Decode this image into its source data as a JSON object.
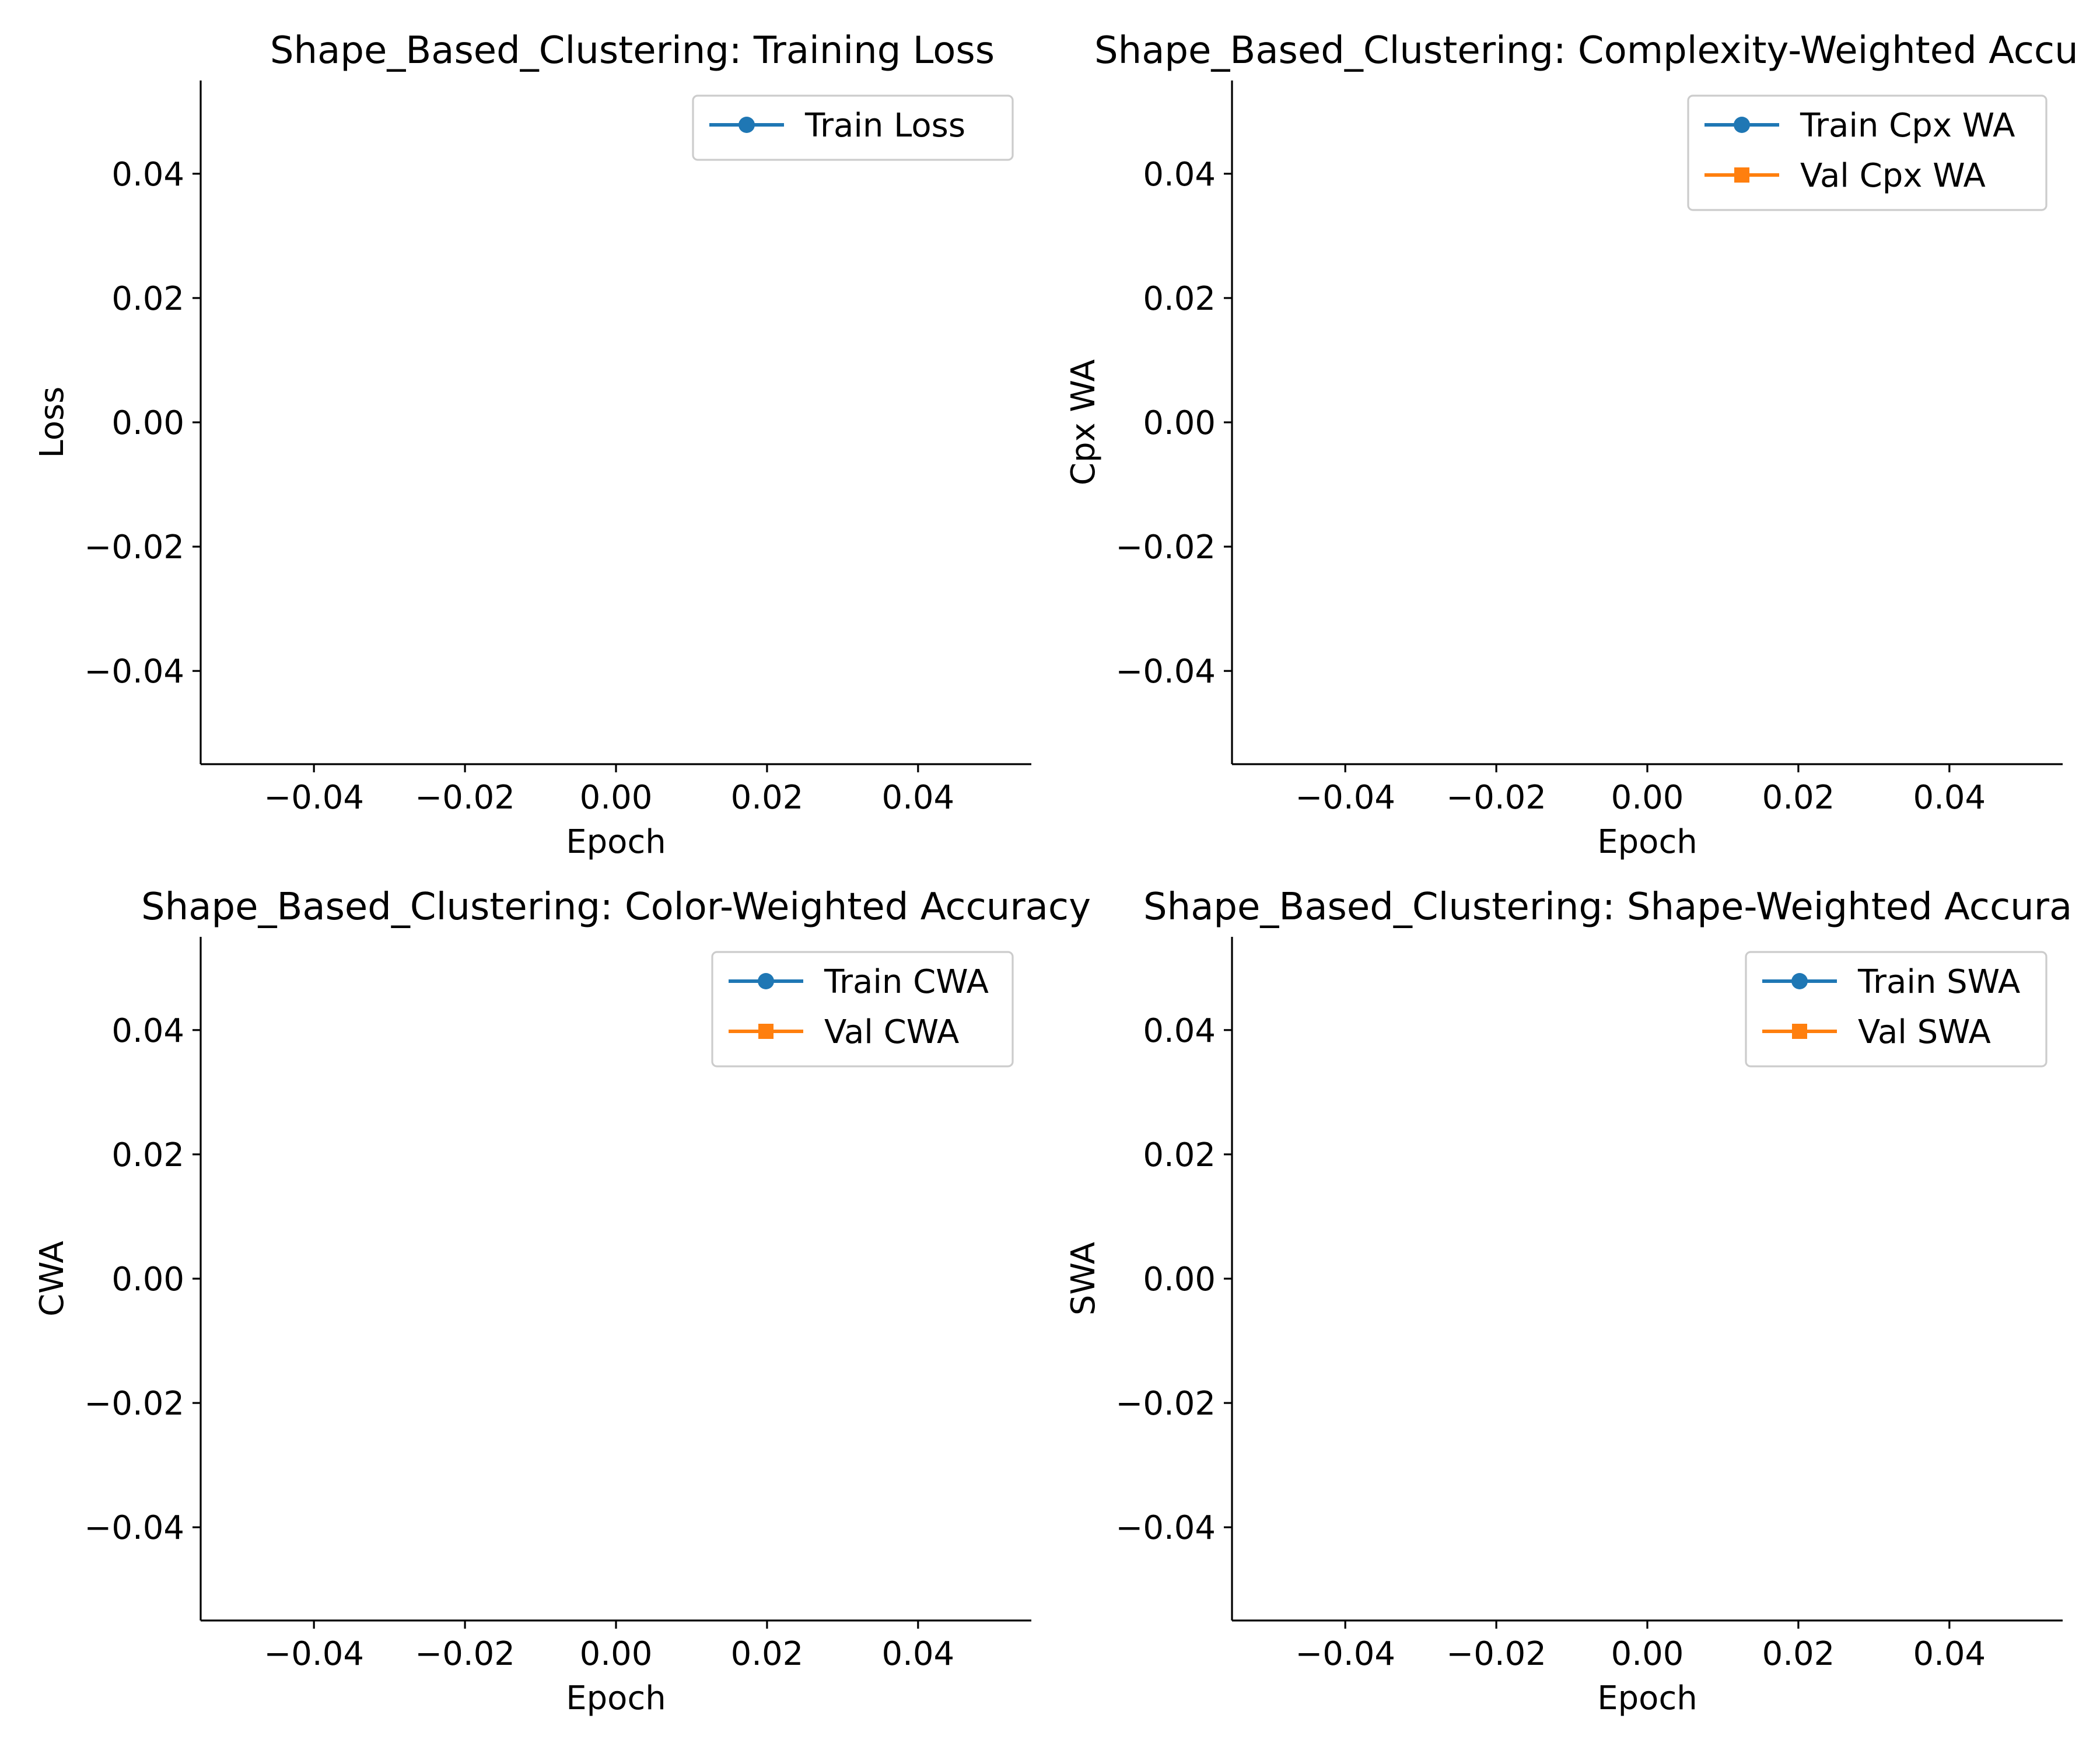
{
  "colors": {
    "train": "#1f77b4",
    "val": "#ff7f0e"
  },
  "chart_data": [
    {
      "type": "line",
      "title": "Shape_Based_Clustering: Training Loss",
      "xlabel": "Epoch",
      "ylabel": "Loss",
      "xlim": [
        -0.055,
        0.055
      ],
      "ylim": [
        -0.055,
        0.055
      ],
      "xticks": [
        "−0.04",
        "−0.02",
        "0.00",
        "0.02",
        "0.04"
      ],
      "yticks": [
        "0.04",
        "0.02",
        "0.00",
        "−0.02",
        "−0.04"
      ],
      "grid": false,
      "legend_position": "upper right",
      "series": [
        {
          "name": "Train Loss",
          "marker": "circle",
          "color": "#1f77b4",
          "x": [],
          "y": []
        }
      ]
    },
    {
      "type": "line",
      "title": "Shape_Based_Clustering: Complexity-Weighted Accu",
      "xlabel": "Epoch",
      "ylabel": "Cpx WA",
      "xlim": [
        -0.055,
        0.055
      ],
      "ylim": [
        -0.055,
        0.055
      ],
      "xticks": [
        "−0.04",
        "−0.02",
        "0.00",
        "0.02",
        "0.04"
      ],
      "yticks": [
        "0.04",
        "0.02",
        "0.00",
        "−0.02",
        "−0.04"
      ],
      "grid": false,
      "legend_position": "upper right",
      "series": [
        {
          "name": "Train Cpx WA",
          "marker": "circle",
          "color": "#1f77b4",
          "x": [],
          "y": []
        },
        {
          "name": "Val Cpx WA",
          "marker": "square",
          "color": "#ff7f0e",
          "x": [],
          "y": []
        }
      ]
    },
    {
      "type": "line",
      "title": "Shape_Based_Clustering: Color-Weighted Accuracy",
      "xlabel": "Epoch",
      "ylabel": "CWA",
      "xlim": [
        -0.055,
        0.055
      ],
      "ylim": [
        -0.055,
        0.055
      ],
      "xticks": [
        "−0.04",
        "−0.02",
        "0.00",
        "0.02",
        "0.04"
      ],
      "yticks": [
        "0.04",
        "0.02",
        "0.00",
        "−0.02",
        "−0.04"
      ],
      "grid": false,
      "legend_position": "upper right",
      "series": [
        {
          "name": "Train CWA",
          "marker": "circle",
          "color": "#1f77b4",
          "x": [],
          "y": []
        },
        {
          "name": "Val CWA",
          "marker": "square",
          "color": "#ff7f0e",
          "x": [],
          "y": []
        }
      ]
    },
    {
      "type": "line",
      "title": "Shape_Based_Clustering: Shape-Weighted Accura",
      "xlabel": "Epoch",
      "ylabel": "SWA",
      "xlim": [
        -0.055,
        0.055
      ],
      "ylim": [
        -0.055,
        0.055
      ],
      "xticks": [
        "−0.04",
        "−0.02",
        "0.00",
        "0.02",
        "0.04"
      ],
      "yticks": [
        "0.04",
        "0.02",
        "0.00",
        "−0.02",
        "−0.04"
      ],
      "grid": false,
      "legend_position": "upper right",
      "series": [
        {
          "name": "Train SWA",
          "marker": "circle",
          "color": "#1f77b4",
          "x": [],
          "y": []
        },
        {
          "name": "Val SWA",
          "marker": "square",
          "color": "#ff7f0e",
          "x": [],
          "y": []
        }
      ]
    }
  ]
}
